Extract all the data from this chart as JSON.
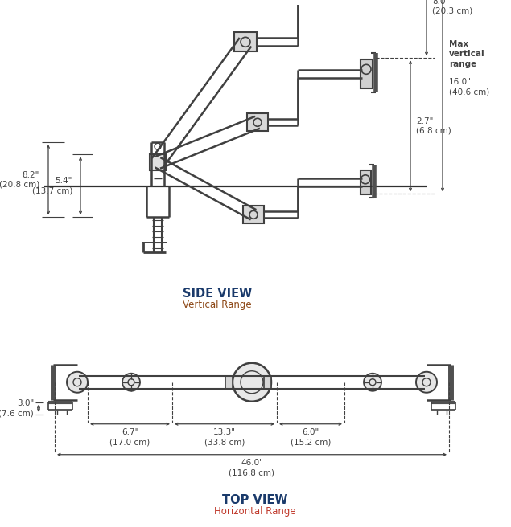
{
  "bg_color": "#ffffff",
  "line_color": "#404040",
  "dim_color": "#404040",
  "title_color": "#1a3a6b",
  "side_view_title": "SIDE VIEW",
  "side_view_subtitle": "Vertical Range",
  "top_view_title": "TOP VIEW",
  "top_view_subtitle": "Horizontal Range",
  "dims_side": {
    "h_total": "8.2\"\n(20.8 cm)",
    "h_upper": "5.4\"\n(13.7 cm)",
    "v_max": "16.0\"\n(40.6 cm)",
    "v_mid": "8.0\"\n(20.3 cm)",
    "v_low": "2.7\"\n(6.8 cm)",
    "max_label": "Max\nvertical\nrange"
  },
  "dims_top": {
    "d1": "6.7\"\n(17.0 cm)",
    "d2": "13.3\"\n(33.8 cm)",
    "d3": "6.0\"\n(15.2 cm)",
    "d_total": "46.0\"\n(116.8 cm)",
    "height": "3.0\"\n(7.6 cm)"
  }
}
